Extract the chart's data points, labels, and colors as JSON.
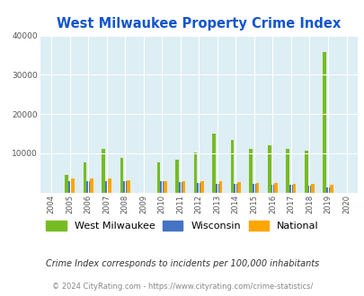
{
  "title": "West Milwaukee Property Crime Index",
  "years": [
    2004,
    2005,
    2006,
    2007,
    2008,
    2009,
    2010,
    2011,
    2012,
    2013,
    2014,
    2015,
    2016,
    2017,
    2018,
    2019,
    2020
  ],
  "west_milwaukee": [
    0,
    4500,
    7700,
    11200,
    8700,
    0,
    7700,
    8400,
    10100,
    14900,
    13300,
    11000,
    12000,
    11100,
    10600,
    35800,
    0
  ],
  "wisconsin": [
    0,
    2800,
    2900,
    2900,
    2800,
    0,
    2800,
    2600,
    2500,
    2200,
    2200,
    2200,
    1900,
    1900,
    1700,
    1200,
    0
  ],
  "national": [
    0,
    3500,
    3500,
    3500,
    3200,
    0,
    2900,
    2900,
    2900,
    2800,
    2700,
    2500,
    2400,
    2200,
    2100,
    2000,
    0
  ],
  "wm_color": "#77bb22",
  "wi_color": "#4472c4",
  "nat_color": "#ffa500",
  "bg_color": "#ddeef5",
  "title_color": "#1155cc",
  "ylim": [
    0,
    40000
  ],
  "yticks": [
    0,
    10000,
    20000,
    30000,
    40000
  ],
  "bar_width": 0.18,
  "legend_labels": [
    "West Milwaukee",
    "Wisconsin",
    "National"
  ],
  "footnote1": "Crime Index corresponds to incidents per 100,000 inhabitants",
  "footnote2": "© 2024 CityRating.com - https://www.cityrating.com/crime-statistics/",
  "footnote1_color": "#333333",
  "footnote2_color": "#888888"
}
